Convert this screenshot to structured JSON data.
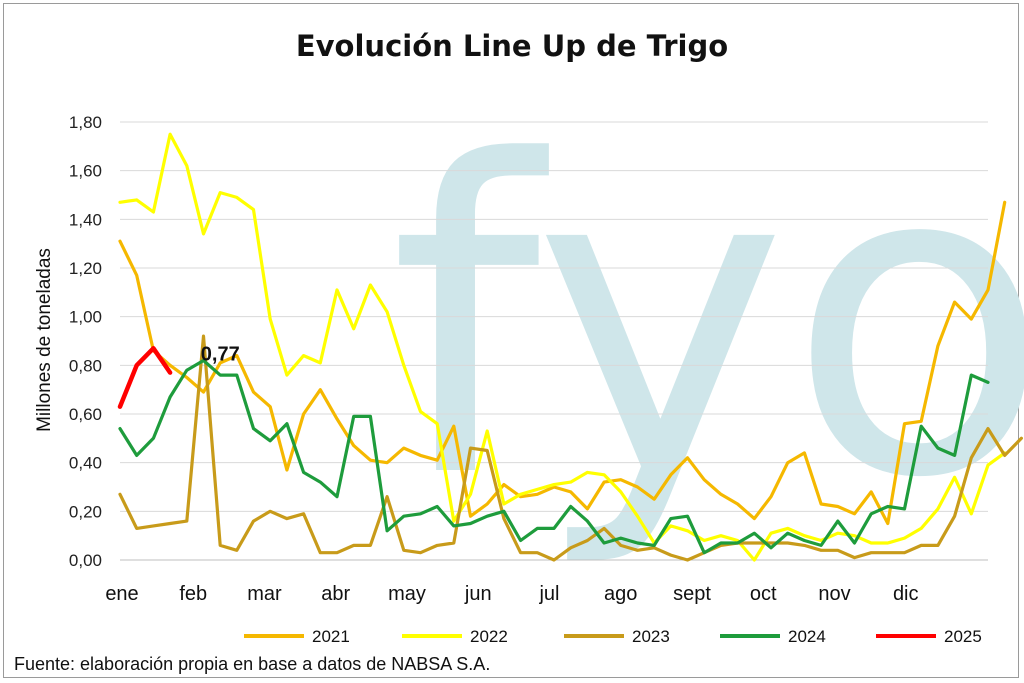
{
  "chart_data": {
    "type": "line",
    "title": "Evolución Line Up de Trigo",
    "ylabel": "Millones de toneladas",
    "xlabel": "",
    "ylim": [
      0,
      1.8
    ],
    "yticks": [
      "0,00",
      "0,20",
      "0,40",
      "0,60",
      "0,80",
      "1,00",
      "1,20",
      "1,40",
      "1,60",
      "1,80"
    ],
    "ytick_values": [
      0,
      0.2,
      0.4,
      0.6,
      0.8,
      1.0,
      1.2,
      1.4,
      1.6,
      1.8
    ],
    "months": [
      "ene",
      "feb",
      "mar",
      "abr",
      "may",
      "jun",
      "jul",
      "ago",
      "sept",
      "oct",
      "nov",
      "dic"
    ],
    "weeks_per_year": 52,
    "grid": "horizontal",
    "legend_position": "bottom",
    "watermark": "fyo",
    "annotation": {
      "text": "0,77",
      "series": "2025",
      "week": 4,
      "value": 0.77
    },
    "source": "Fuente: elaboración propia en base a datos de NABSA S.A.",
    "series": [
      {
        "name": "2021",
        "color": "#F5B800",
        "values": [
          1.31,
          1.17,
          0.86,
          0.8,
          0.75,
          0.69,
          0.81,
          0.84,
          0.69,
          0.63,
          0.37,
          0.6,
          0.7,
          0.58,
          0.47,
          0.41,
          0.4,
          0.46,
          0.43,
          0.41,
          0.55,
          0.18,
          0.23,
          0.31,
          0.26,
          0.27,
          0.3,
          0.28,
          0.21,
          0.32,
          0.33,
          0.3,
          0.25,
          0.35,
          0.42,
          0.33,
          0.27,
          0.23,
          0.17,
          0.26,
          0.4,
          0.44,
          0.23,
          0.22,
          0.19,
          0.28,
          0.15,
          0.56,
          0.57,
          0.88,
          1.06,
          0.99,
          1.11,
          1.47
        ]
      },
      {
        "name": "2022",
        "color": "#FFFF00",
        "values": [
          1.47,
          1.48,
          1.43,
          1.75,
          1.62,
          1.34,
          1.51,
          1.49,
          1.44,
          0.99,
          0.76,
          0.84,
          0.81,
          1.11,
          0.95,
          1.13,
          1.02,
          0.8,
          0.61,
          0.56,
          0.16,
          0.27,
          0.53,
          0.23,
          0.27,
          0.29,
          0.31,
          0.32,
          0.36,
          0.35,
          0.28,
          0.18,
          0.07,
          0.14,
          0.12,
          0.08,
          0.1,
          0.08,
          0.0,
          0.11,
          0.13,
          0.1,
          0.08,
          0.11,
          0.1,
          0.07,
          0.07,
          0.09,
          0.13,
          0.21,
          0.34,
          0.19,
          0.39,
          0.44
        ]
      },
      {
        "name": "2023",
        "color": "#C89B1A",
        "values": [
          0.27,
          0.13,
          0.14,
          0.15,
          0.16,
          0.92,
          0.06,
          0.04,
          0.16,
          0.2,
          0.17,
          0.19,
          0.03,
          0.03,
          0.06,
          0.06,
          0.26,
          0.04,
          0.03,
          0.06,
          0.07,
          0.46,
          0.45,
          0.17,
          0.03,
          0.03,
          0.0,
          0.05,
          0.08,
          0.13,
          0.06,
          0.04,
          0.05,
          0.02,
          0.0,
          0.03,
          0.06,
          0.07,
          0.07,
          0.07,
          0.07,
          0.06,
          0.04,
          0.04,
          0.01,
          0.03,
          0.03,
          0.03,
          0.06,
          0.06,
          0.18,
          0.42,
          0.54,
          0.43,
          0.5
        ]
      },
      {
        "name": "2024",
        "color": "#1E9C3C",
        "values": [
          0.54,
          0.43,
          0.5,
          0.67,
          0.78,
          0.82,
          0.76,
          0.76,
          0.54,
          0.49,
          0.56,
          0.36,
          0.32,
          0.26,
          0.59,
          0.59,
          0.12,
          0.18,
          0.19,
          0.22,
          0.14,
          0.15,
          0.18,
          0.2,
          0.08,
          0.13,
          0.13,
          0.22,
          0.16,
          0.07,
          0.09,
          0.07,
          0.06,
          0.17,
          0.18,
          0.03,
          0.07,
          0.07,
          0.11,
          0.05,
          0.11,
          0.08,
          0.06,
          0.16,
          0.07,
          0.19,
          0.22,
          0.21,
          0.55,
          0.46,
          0.43,
          0.76,
          0.73
        ]
      },
      {
        "name": "2025",
        "color": "#FF0000",
        "values": [
          0.63,
          0.8,
          0.87,
          0.77
        ]
      }
    ]
  }
}
